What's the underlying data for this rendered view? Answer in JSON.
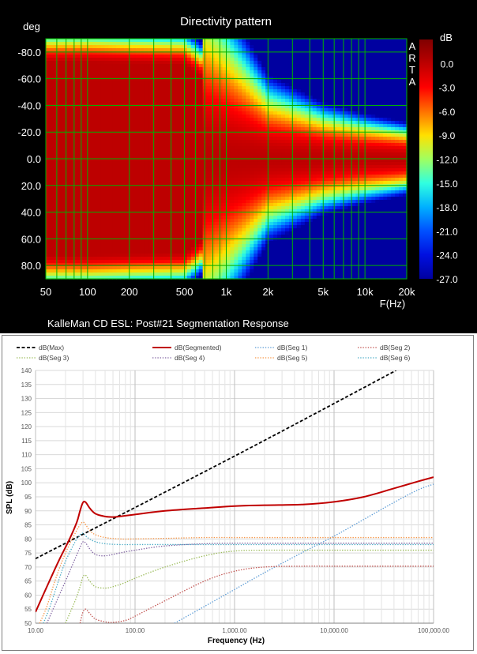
{
  "chart_data": [
    {
      "type": "heatmap",
      "title": "Directivity pattern",
      "ylabel": "deg",
      "xlabel": "F(Hz)",
      "colorbar_label": "dB",
      "watermark": "ARTA",
      "caption": "KalleMan CD ESL: Post#21 Segmentation Response",
      "x_scale": "log",
      "xlim": [
        50,
        20000
      ],
      "ylim": [
        -90,
        90
      ],
      "clim": [
        -27,
        3
      ],
      "x_ticks": [
        50,
        100,
        200,
        500,
        1000,
        2000,
        5000,
        10000,
        20000
      ],
      "x_tick_labels": [
        "50",
        "100",
        "200",
        "500",
        "1k",
        "2k",
        "5k",
        "10k",
        "20k"
      ],
      "y_ticks": [
        -80,
        -60,
        -40,
        -20,
        0,
        20,
        40,
        60,
        80
      ],
      "y_tick_labels": [
        "-80.0",
        "-60.0",
        "-40.0",
        "-20.0",
        "0.0",
        "20.0",
        "40.0",
        "60.0",
        "80.0"
      ],
      "colorbar_ticks": [
        0,
        -3,
        -6,
        -9,
        -12,
        -15,
        -18,
        -21,
        -24,
        -27
      ],
      "colorbar_tick_labels": [
        "0.0",
        "-3.0",
        "-6.0",
        "-9.0",
        "-12.0",
        "-15.0",
        "-18.0",
        "-21.0",
        "-24.0",
        "-27.0"
      ],
      "grid": true,
      "colors": {
        "background": "#000000",
        "grid": "#00b000",
        "text": "#ffffff"
      },
      "beam_width_deg": {
        "freq_hz": [
          50,
          100,
          200,
          500,
          1000,
          2000,
          5000,
          10000,
          20000
        ],
        "minus6dB_half_angle": [
          82,
          82,
          81,
          80,
          56,
          30,
          20,
          16,
          13
        ]
      }
    },
    {
      "type": "line",
      "xlabel": "Frequency (Hz)",
      "ylabel": "SPL (dB)",
      "x_scale": "log",
      "xlim": [
        10,
        100000
      ],
      "ylim": [
        50,
        140
      ],
      "x_ticks": [
        10,
        100,
        1000,
        10000,
        100000
      ],
      "x_tick_labels": [
        "10.00",
        "100.00",
        "1,000.00",
        "10,000.00",
        "100,000.00"
      ],
      "y_ticks": [
        50,
        55,
        60,
        65,
        70,
        75,
        80,
        85,
        90,
        95,
        100,
        105,
        110,
        115,
        120,
        125,
        130,
        135,
        140
      ],
      "y_tick_labels": [
        "50",
        "55",
        "60",
        "65",
        "70",
        "75",
        "80",
        "85",
        "90",
        "95",
        "100",
        "105",
        "110",
        "115",
        "120",
        "125",
        "130",
        "135",
        "140"
      ],
      "grid": true,
      "legend_position": "top",
      "series": [
        {
          "name": "dB(Max)",
          "color": "#000000",
          "style": "dashed",
          "width": 1.8,
          "x": [
            10,
            1000,
            42000
          ],
          "y": [
            73,
            109.5,
            140
          ]
        },
        {
          "name": "dB(Segmented)",
          "color": "#c00000",
          "style": "solid",
          "width": 2,
          "x": [
            10,
            13,
            17,
            22,
            26,
            28,
            30,
            32,
            35,
            40,
            50,
            60,
            70,
            100,
            200,
            500,
            1000,
            2000,
            5000,
            10000,
            20000,
            40000,
            70000,
            100000
          ],
          "y": [
            54,
            63,
            72,
            80,
            86,
            90,
            93,
            93,
            91,
            89,
            88,
            87.8,
            88,
            88.7,
            90,
            91,
            91.7,
            92,
            92.3,
            93.2,
            95,
            98,
            100.5,
            102
          ]
        },
        {
          "name": "dB(Seg 1)",
          "color": "#5b9bd5",
          "style": "dotted",
          "width": 1.3,
          "x": [
            250,
            500,
            1000,
            2000,
            5000,
            10000,
            20000,
            40000,
            70000,
            100000
          ],
          "y": [
            50,
            56,
            62,
            68,
            75.5,
            81,
            87,
            93,
            97.5,
            99.5
          ]
        },
        {
          "name": "dB(Seg 2)",
          "color": "#c0504d",
          "style": "dotted",
          "width": 1.3,
          "x": [
            28,
            30,
            32,
            35,
            40,
            50,
            60,
            80,
            100,
            200,
            500,
            1000,
            2000,
            5000,
            10000,
            100000
          ],
          "y": [
            50,
            54,
            55,
            53.5,
            51.5,
            50.5,
            50.3,
            51,
            52.5,
            58,
            65,
            68.5,
            70,
            70.3,
            70.3,
            70.3
          ]
        },
        {
          "name": "dB(Seg 3)",
          "color": "#9bbb59",
          "style": "dotted",
          "width": 1.3,
          "x": [
            20,
            25,
            28,
            30,
            32,
            35,
            40,
            50,
            60,
            80,
            100,
            200,
            500,
            1000,
            2000,
            5000,
            10000,
            100000
          ],
          "y": [
            50,
            58,
            63,
            66.5,
            67,
            65,
            63,
            62.5,
            63,
            64.5,
            66,
            70,
            74,
            75.7,
            76,
            76,
            76,
            76
          ]
        },
        {
          "name": "dB(Seg 4)",
          "color": "#8064a2",
          "style": "dotted",
          "width": 1.3,
          "x": [
            13,
            15,
            20,
            25,
            28,
            30,
            32,
            35,
            40,
            50,
            70,
            100,
            200,
            500,
            1000,
            2000,
            5000,
            10000,
            100000
          ],
          "y": [
            50,
            55,
            65,
            73,
            77,
            79,
            78.5,
            76.5,
            74.5,
            74,
            75,
            76,
            77.5,
            78.3,
            78.5,
            78.5,
            78.5,
            78.5,
            78.5
          ]
        },
        {
          "name": "dB(Seg 5)",
          "color": "#f79646",
          "style": "dotted",
          "width": 1.3,
          "x": [
            11,
            13,
            16,
            20,
            25,
            28,
            30,
            32,
            35,
            40,
            50,
            70,
            100,
            200,
            500,
            1000,
            2000,
            10000,
            100000
          ],
          "y": [
            50,
            56,
            66,
            75,
            82,
            85,
            86,
            85,
            83,
            81.5,
            80.5,
            80,
            80,
            80.2,
            80.5,
            80.5,
            80.5,
            80.5,
            80.5
          ]
        },
        {
          "name": "dB(Seg 6)",
          "color": "#4bacc6",
          "style": "dotted",
          "width": 1.3,
          "x": [
            12,
            14,
            17,
            20,
            25,
            28,
            30,
            32,
            35,
            40,
            50,
            70,
            100,
            200,
            500,
            1000,
            2000,
            10000,
            100000
          ],
          "y": [
            50,
            56,
            65,
            72,
            79,
            81.5,
            82,
            81,
            80,
            79,
            78.3,
            78,
            78,
            78,
            78,
            78,
            78,
            78,
            78
          ]
        }
      ]
    }
  ]
}
